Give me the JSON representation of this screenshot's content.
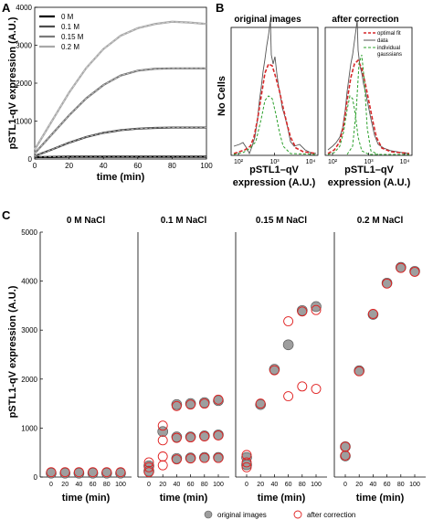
{
  "panels": {
    "a_letter": "A",
    "b_letter": "B",
    "c_letter": "C"
  },
  "chart_data": [
    {
      "id": "A",
      "type": "line",
      "xlabel": "time (min)",
      "ylabel": "pSTL1-qV expression (A.U.)",
      "xlim": [
        0,
        100
      ],
      "ylim": [
        0,
        4000
      ],
      "xticks": [
        "0",
        "20",
        "40",
        "60",
        "80",
        "100"
      ],
      "yticks": [
        "0",
        "1000",
        "2000",
        "3000",
        "4000"
      ],
      "legend_position": "top-left",
      "x": [
        0,
        10,
        20,
        30,
        40,
        50,
        60,
        70,
        80,
        90,
        100
      ],
      "series": [
        {
          "name": "0 M",
          "color": "#000000",
          "values": [
            50,
            55,
            60,
            60,
            60,
            60,
            60,
            60,
            60,
            60,
            60
          ]
        },
        {
          "name": "0.1 M",
          "color": "#4d4d4d",
          "values": [
            80,
            250,
            430,
            580,
            690,
            760,
            800,
            820,
            830,
            830,
            830
          ]
        },
        {
          "name": "0.15 M",
          "color": "#7a7a7a",
          "values": [
            150,
            650,
            1150,
            1600,
            1950,
            2200,
            2330,
            2380,
            2390,
            2390,
            2390
          ]
        },
        {
          "name": "0.2 M",
          "color": "#a8a8a8",
          "values": [
            250,
            1000,
            1750,
            2400,
            2900,
            3250,
            3450,
            3560,
            3620,
            3600,
            3560
          ]
        }
      ]
    },
    {
      "id": "B",
      "type": "line",
      "ylabel": "No Cells",
      "xlabel": "pSTL1-qV expression (A.U.)",
      "subplots": [
        {
          "title": "original images",
          "xticks": [
            "10²",
            "10³",
            "10⁴"
          ]
        },
        {
          "title": "after correction",
          "xticks": [
            "10²",
            "10³",
            "10⁴"
          ]
        }
      ],
      "legend_position": "top-right",
      "legend": [
        {
          "name": "optimal fit",
          "color": "#d62728",
          "style": "dashed"
        },
        {
          "name": "data",
          "color": "#555555",
          "style": "solid"
        },
        {
          "name": "individual gaussians",
          "color": "#2ca02c",
          "style": "dashed"
        }
      ]
    },
    {
      "id": "C",
      "type": "scatter",
      "ylabel": "pSTL1-qV expression (A.U.)",
      "xlabel": "time (min)",
      "ylim": [
        0,
        5000
      ],
      "yticks": [
        "0",
        "1000",
        "2000",
        "3000",
        "4000",
        "5000"
      ],
      "xticks": [
        "0",
        "20",
        "40",
        "60",
        "80",
        "100"
      ],
      "legend": [
        {
          "name": "original images",
          "marker": "filled-gray-circle"
        },
        {
          "name": "after correction",
          "marker": "open-red-circle"
        }
      ],
      "subplots": [
        {
          "title": "0 M NaCl",
          "original": [
            [
              0,
              80
            ],
            [
              20,
              80
            ],
            [
              40,
              80
            ],
            [
              60,
              80
            ],
            [
              80,
              80
            ],
            [
              100,
              80
            ]
          ],
          "corrected": [
            [
              0,
              100
            ],
            [
              20,
              100
            ],
            [
              40,
              100
            ],
            [
              60,
              100
            ],
            [
              80,
              100
            ],
            [
              100,
              100
            ]
          ]
        },
        {
          "title": "0.1 M NaCl",
          "original": [
            [
              0,
              230
            ],
            [
              20,
              930
            ],
            [
              40,
              1480
            ],
            [
              60,
              1500
            ],
            [
              80,
              1520
            ],
            [
              100,
              1560
            ],
            [
              40,
              820
            ],
            [
              60,
              820
            ],
            [
              80,
              840
            ],
            [
              100,
              860
            ],
            [
              40,
              380
            ],
            [
              60,
              390
            ],
            [
              80,
              400
            ],
            [
              100,
              400
            ],
            [
              0,
              120
            ]
          ],
          "corrected": [
            [
              0,
              300
            ],
            [
              20,
              1050
            ],
            [
              20,
              750
            ],
            [
              40,
              1450
            ],
            [
              60,
              1480
            ],
            [
              80,
              1500
            ],
            [
              100,
              1580
            ],
            [
              20,
              420
            ],
            [
              40,
              800
            ],
            [
              60,
              810
            ],
            [
              80,
              830
            ],
            [
              100,
              850
            ],
            [
              20,
              240
            ],
            [
              40,
              360
            ],
            [
              60,
              380
            ],
            [
              80,
              390
            ],
            [
              100,
              390
            ],
            [
              0,
              200
            ],
            [
              0,
              100
            ]
          ]
        },
        {
          "title": "0.15 M NaCl",
          "original": [
            [
              0,
              400
            ],
            [
              20,
              1480
            ],
            [
              40,
              2200
            ],
            [
              60,
              2700
            ],
            [
              80,
              3400
            ],
            [
              100,
              3480
            ],
            [
              0,
              250
            ]
          ],
          "corrected": [
            [
              0,
              450
            ],
            [
              20,
              1500
            ],
            [
              40,
              2180
            ],
            [
              60,
              3180
            ],
            [
              80,
              3380
            ],
            [
              100,
              3410
            ],
            [
              60,
              1650
            ],
            [
              80,
              1850
            ],
            [
              100,
              1800
            ],
            [
              0,
              300
            ],
            [
              0,
              200
            ]
          ]
        },
        {
          "title": "0.2 M NaCl",
          "original": [
            [
              0,
              430
            ],
            [
              20,
              2170
            ],
            [
              40,
              3320
            ],
            [
              60,
              3960
            ],
            [
              80,
              4280
            ],
            [
              100,
              4200
            ],
            [
              0,
              620
            ]
          ],
          "corrected": [
            [
              0,
              440
            ],
            [
              20,
              2160
            ],
            [
              40,
              3330
            ],
            [
              60,
              3950
            ],
            [
              80,
              4270
            ],
            [
              100,
              4190
            ],
            [
              0,
              620
            ]
          ]
        }
      ]
    }
  ]
}
